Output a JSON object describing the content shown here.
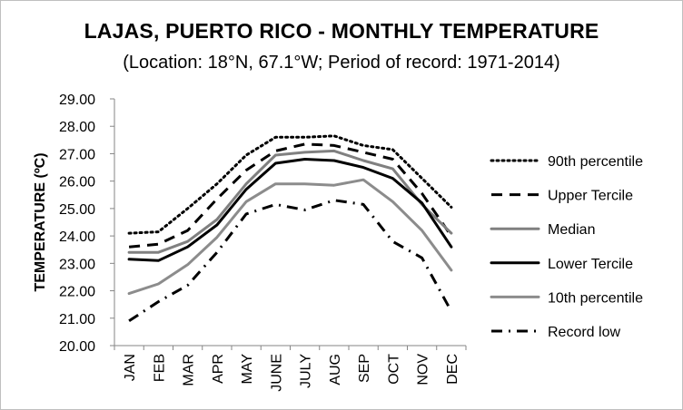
{
  "title": "LAJAS, PUERTO RICO - MONTHLY TEMPERATURE",
  "subtitle": "(Location: 18°N, 67.1°W; Period of record: 1971-2014)",
  "chart_data": {
    "type": "line",
    "title": "LAJAS, PUERTO RICO - MONTHLY TEMPERATURE",
    "subtitle": "(Location: 18°N, 67.1°W; Period of record: 1971-2014)",
    "xlabel": "",
    "ylabel": "TEMPERATURE (ºC)",
    "ylim": [
      20,
      29
    ],
    "ytick_labels": [
      "29.00",
      "28.00",
      "27.00",
      "26.00",
      "25.00",
      "24.00",
      "23.00",
      "22.00",
      "21.00",
      "20.00"
    ],
    "categories": [
      "JAN",
      "FEB",
      "MAR",
      "APR",
      "MAY",
      "JUNE",
      "JULY",
      "AUG",
      "SEP",
      "OCT",
      "NOV",
      "DEC"
    ],
    "grid": false,
    "legend_position": "right",
    "series": [
      {
        "name": "90th percentile",
        "color": "#000000",
        "style": "dotted",
        "values": [
          24.1,
          24.15,
          25.0,
          25.9,
          26.95,
          27.6,
          27.6,
          27.65,
          27.3,
          27.15,
          26.1,
          25.05
        ]
      },
      {
        "name": "Upper Tercile",
        "color": "#000000",
        "style": "dash",
        "values": [
          23.6,
          23.7,
          24.2,
          25.35,
          26.4,
          27.1,
          27.35,
          27.3,
          27.05,
          26.8,
          25.55,
          24.0
        ]
      },
      {
        "name": "Median",
        "color": "#808080",
        "style": "solid",
        "values": [
          23.4,
          23.4,
          23.8,
          24.6,
          25.9,
          26.95,
          27.05,
          27.1,
          26.75,
          26.45,
          25.15,
          24.1
        ]
      },
      {
        "name": "Lower Tercile",
        "color": "#000000",
        "style": "solid",
        "values": [
          23.15,
          23.1,
          23.6,
          24.4,
          25.7,
          26.65,
          26.8,
          26.75,
          26.5,
          26.1,
          25.2,
          23.6
        ]
      },
      {
        "name": "10th percentile",
        "color": "#8c8c8c",
        "style": "solid",
        "values": [
          21.9,
          22.25,
          22.95,
          23.95,
          25.25,
          25.9,
          25.9,
          25.85,
          26.05,
          25.25,
          24.2,
          22.75
        ]
      },
      {
        "name": "Record low",
        "color": "#000000",
        "style": "dashdot",
        "values": [
          20.9,
          21.6,
          22.2,
          23.4,
          24.8,
          25.15,
          24.95,
          25.3,
          25.15,
          23.8,
          23.2,
          21.25
        ]
      }
    ]
  }
}
